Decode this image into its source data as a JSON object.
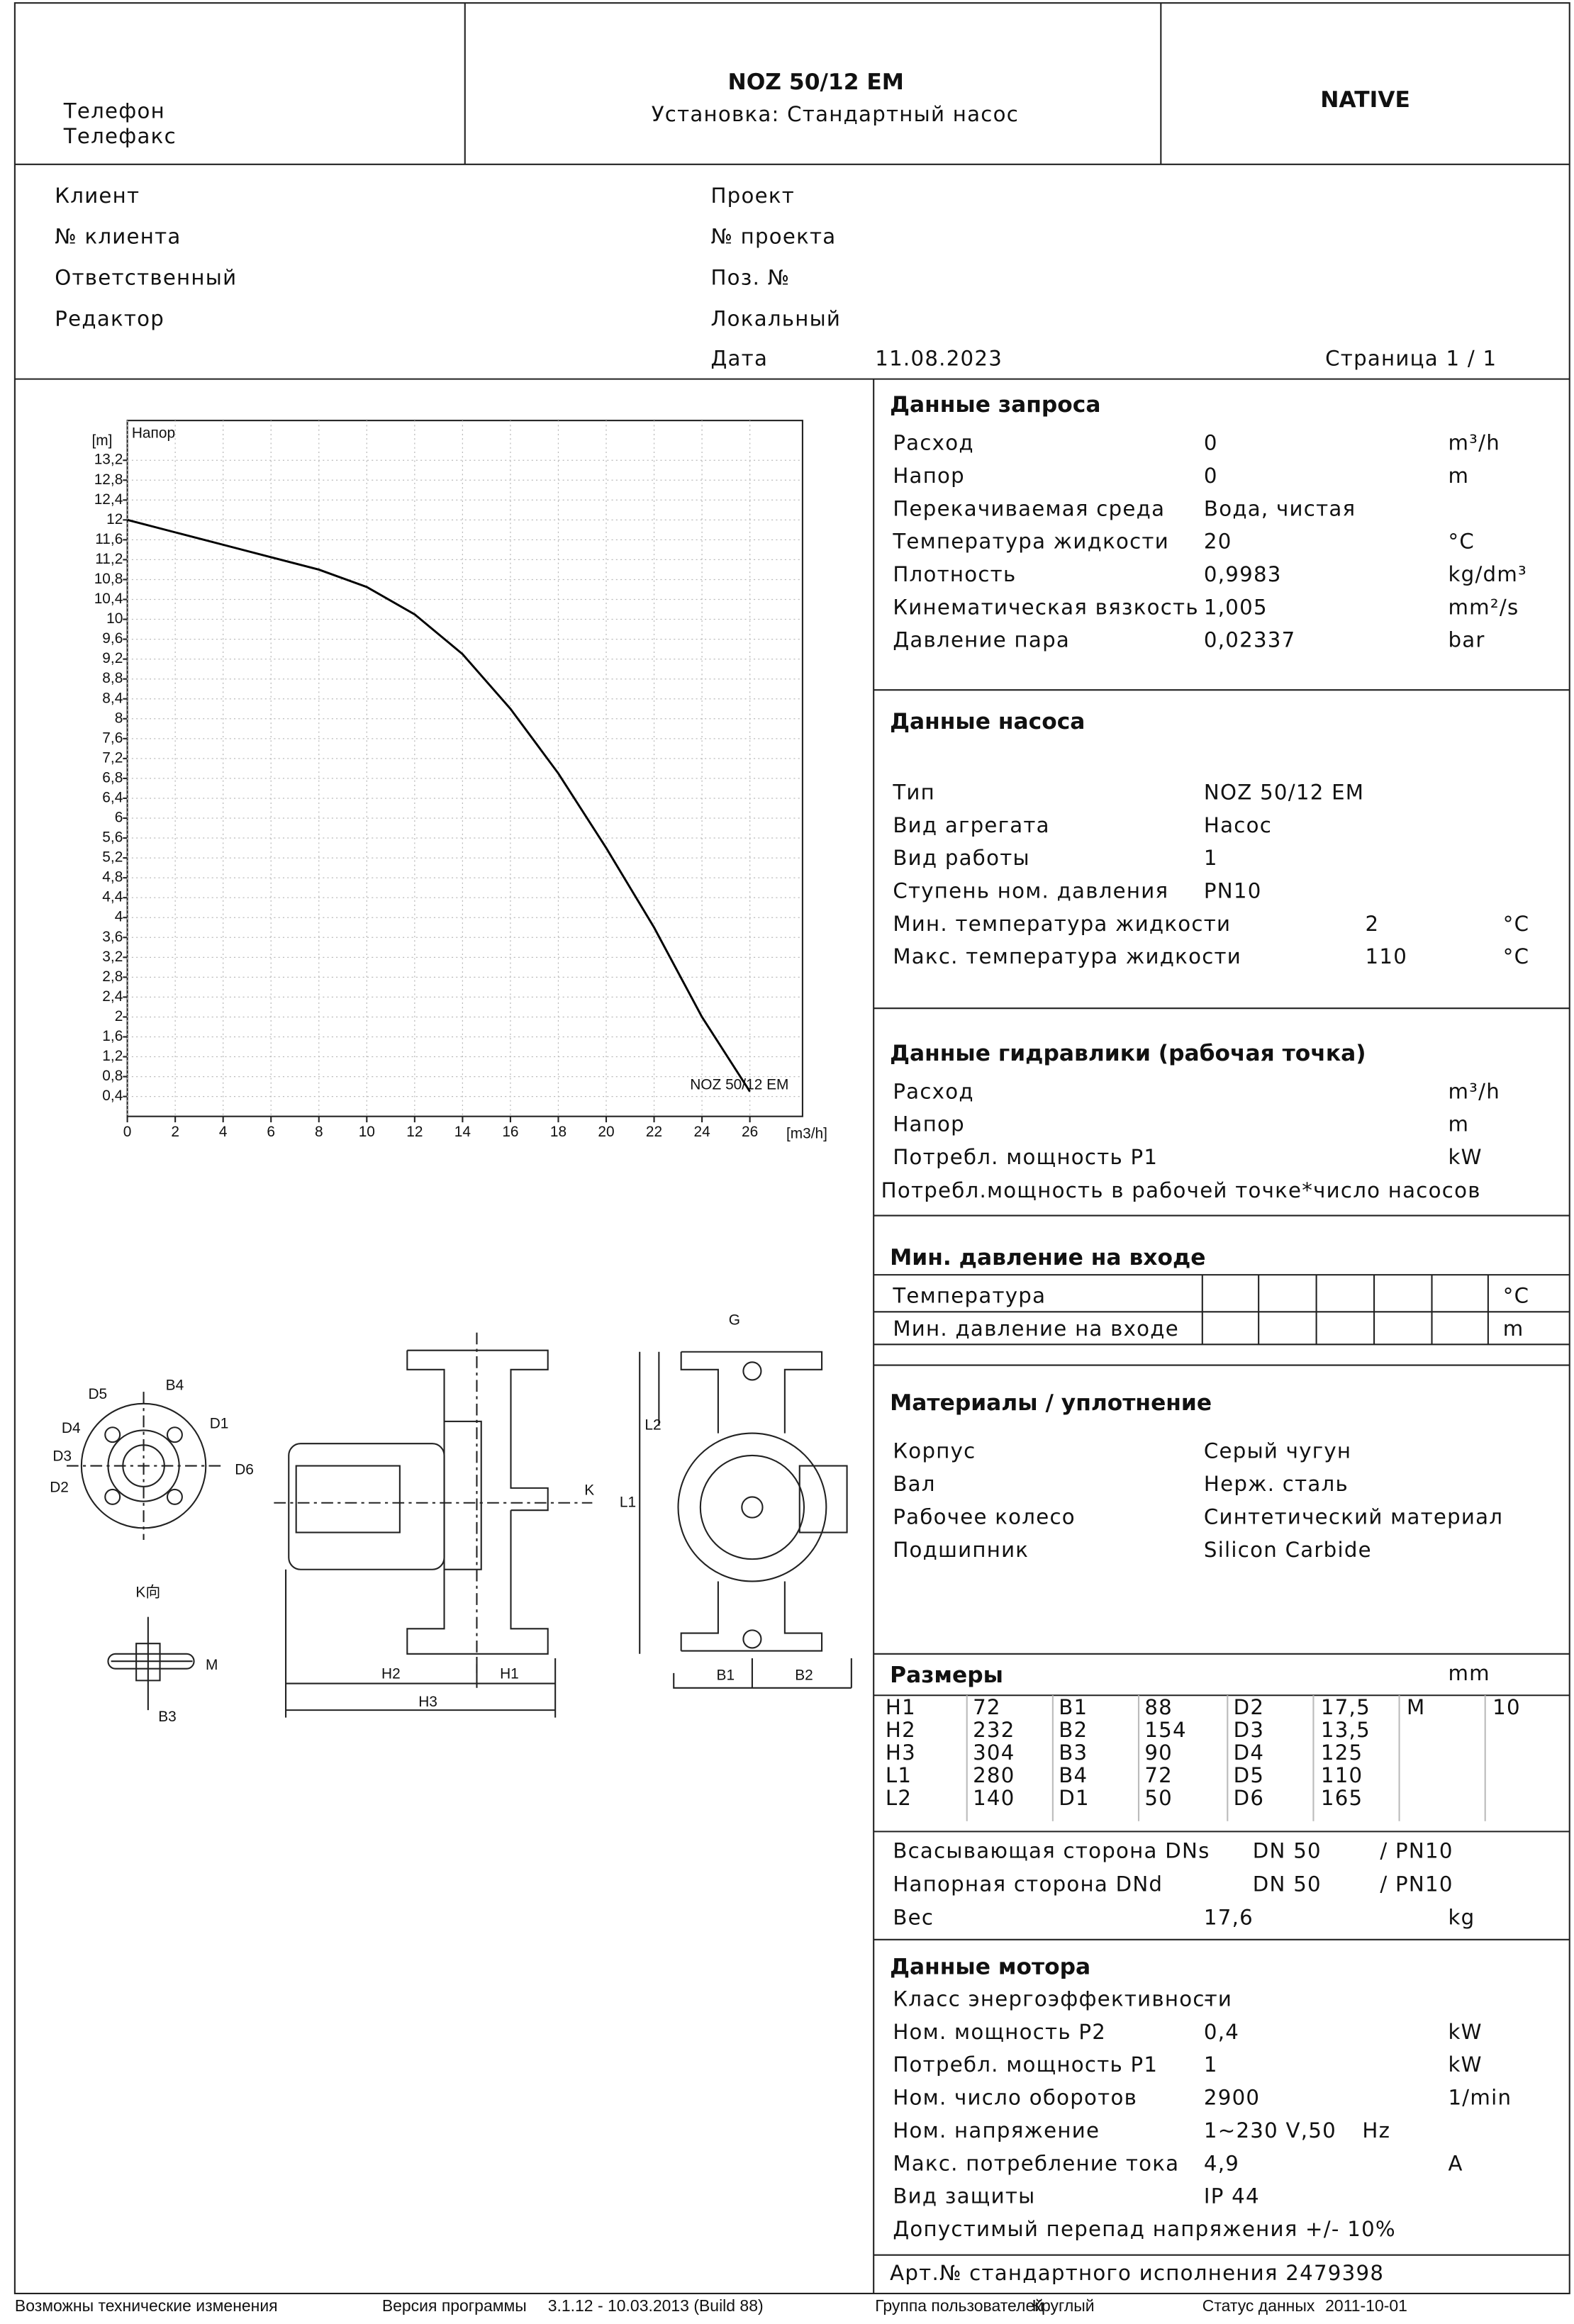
{
  "header": {
    "phone": "Телефон",
    "fax": "Телефакс",
    "title": "NOZ 50/12 EM",
    "subtitle": "Установка: Стандартный насос",
    "logo": "NATIVE"
  },
  "project": {
    "left": [
      "Клиент",
      "№ клиента",
      "Ответственный",
      "Редактор"
    ],
    "right": [
      "Проект",
      "№ проекта",
      "Поз. №",
      "Локальный"
    ],
    "date_label": "Дата",
    "date": "11.08.2023",
    "page": "Страница 1 / 1"
  },
  "chart_data": {
    "type": "line",
    "y_label": "[m]",
    "x_label": "[m3/h]",
    "inner_label": "Напор",
    "curve_label": "NOZ 50/12 EM",
    "x": [
      0,
      2,
      4,
      6,
      8,
      10,
      12,
      14,
      16,
      18,
      20,
      22,
      24,
      26
    ],
    "values": [
      12.0,
      11.75,
      11.5,
      11.25,
      11.0,
      10.65,
      10.1,
      9.3,
      8.2,
      6.9,
      5.4,
      3.8,
      2.0,
      0.5
    ],
    "color": "#000000",
    "xlim": [
      0,
      28.2
    ],
    "ylim": [
      0,
      14
    ],
    "xticks": [
      0,
      2,
      4,
      6,
      8,
      10,
      12,
      14,
      16,
      18,
      20,
      22,
      24,
      26
    ],
    "yticks": [
      {
        "value": 0.4,
        "label": "0,4"
      },
      {
        "value": 0.8,
        "label": "0,8"
      },
      {
        "value": 1.2,
        "label": "1,2"
      },
      {
        "value": 1.6,
        "label": "1,6"
      },
      2,
      {
        "value": 2.4,
        "label": "2,4"
      },
      {
        "value": 2.8,
        "label": "2,8"
      },
      {
        "value": 3.2,
        "label": "3,2"
      },
      {
        "value": 3.6,
        "label": "3,6"
      },
      4,
      {
        "value": 4.4,
        "label": "4,4"
      },
      {
        "value": 4.8,
        "label": "4,8"
      },
      {
        "value": 5.2,
        "label": "5,2"
      },
      {
        "value": 5.6,
        "label": "5,6"
      },
      6,
      {
        "value": 6.4,
        "label": "6,4"
      },
      {
        "value": 6.8,
        "label": "6,8"
      },
      {
        "value": 7.2,
        "label": "7,2"
      },
      {
        "value": 7.6,
        "label": "7,6"
      },
      8,
      {
        "value": 8.4,
        "label": "8,4"
      },
      {
        "value": 8.8,
        "label": "8,8"
      },
      {
        "value": 9.2,
        "label": "9,2"
      },
      {
        "value": 9.6,
        "label": "9,6"
      },
      10,
      {
        "value": 10.4,
        "label": "10,4"
      },
      {
        "value": 10.8,
        "label": "10,8"
      },
      {
        "value": 11.2,
        "label": "11,2"
      },
      {
        "value": 11.6,
        "label": "11,6"
      },
      12,
      {
        "value": 12.4,
        "label": "12,4"
      },
      {
        "value": 12.8,
        "label": "12,8"
      },
      {
        "value": 13.2,
        "label": "13,2"
      }
    ],
    "grid": true
  },
  "request_data": {
    "title": "Данные запроса",
    "rows": [
      [
        "Расход",
        "0",
        "m³/h"
      ],
      [
        "Напор",
        "0",
        "m"
      ],
      [
        "Перекачиваемая среда",
        "Вода, чистая"
      ],
      [
        "Температура жидкости",
        "20",
        "°C"
      ],
      [
        "Плотность",
        "0,9983",
        "kg/dm³"
      ],
      [
        "Кинематическая вязкость",
        "1,005",
        "mm²/s"
      ],
      [
        "Давление пара",
        "0,02337",
        "bar"
      ]
    ]
  },
  "pump_data": {
    "title": "Данные насоса",
    "rows": [
      [
        "Тип",
        "NOZ 50/12 EM"
      ],
      [
        "Вид агрегата",
        "Насос"
      ],
      [
        "Вид работы",
        "1"
      ],
      [
        "Ступень ном. давления",
        "PN10"
      ],
      [
        "Мин. температура жидкости",
        "2",
        "°C"
      ],
      [
        "Макс. температура жидкости",
        "110",
        "°C"
      ]
    ]
  },
  "hydraulics": {
    "title": "Данные гидравлики (рабочая точка)",
    "rows": [
      [
        "Расход",
        "m³/h"
      ],
      [
        "Напор",
        "m"
      ],
      [
        "Потребл. мощность P1",
        "kW"
      ]
    ],
    "note": "Потребл.мощность в рабочей точке*число насосов"
  },
  "min_inlet": {
    "title": "Мин. давление на входе",
    "rows": [
      [
        "Температура",
        "°C"
      ],
      [
        "Мин. давление на входе",
        "m"
      ]
    ]
  },
  "materials": {
    "title": "Материалы / уплотнение",
    "rows": [
      [
        "Корпус",
        "Серый чугун"
      ],
      [
        "Вал",
        "Нерж. сталь"
      ],
      [
        "Рабочее колесо",
        "Синтетический материал"
      ],
      [
        "Подшипник",
        "Silicon Carbide"
      ]
    ]
  },
  "dimensions": {
    "title": "Размеры",
    "unit": "mm",
    "table": [
      [
        "H1",
        "72",
        "B1",
        "88",
        "D2",
        "17,5",
        "M",
        "10"
      ],
      [
        "H2",
        "232",
        "B2",
        "154",
        "D3",
        "13,5"
      ],
      [
        "H3",
        "304",
        "B3",
        "90",
        "D4",
        "125"
      ],
      [
        "L1",
        "280",
        "B4",
        "72",
        "D5",
        "110"
      ],
      [
        "L2",
        "140",
        "D1",
        "50",
        "D6",
        "165"
      ]
    ],
    "connections": [
      [
        "Всасывающая сторона DNs",
        "DN 50",
        "/ PN10"
      ],
      [
        "Напорная сторона DNd",
        "DN 50",
        "/ PN10"
      ]
    ],
    "weight": [
      "Вес",
      "17,6",
      "kg"
    ]
  },
  "motor": {
    "title": "Данные мотора",
    "rows": [
      [
        "Класс энергоэффективности",
        "-"
      ],
      [
        "Ном. мощность P2",
        "0,4",
        "kW"
      ],
      [
        "Потребл. мощность P1",
        "1",
        "kW"
      ],
      [
        "Ном. число оборотов",
        "2900",
        "1/min"
      ],
      [
        "Ном. напряжение",
        "1~230 V,50",
        "Hz"
      ],
      [
        "Макс. потребление тока",
        "4,9",
        "A"
      ],
      [
        "Вид защиты",
        "IP 44"
      ],
      [
        "Допустимый перепад напряжения +/- 10%"
      ]
    ]
  },
  "article": "Арт.№ стандартного исполнения 2479398",
  "drawing_labels": [
    "G",
    "B4",
    "D1",
    "D6",
    "D5",
    "D4",
    "D3",
    "D2",
    "K向",
    "M",
    "B3",
    "H2",
    "H1",
    "H3",
    "K",
    "L1",
    "L2",
    "B1",
    "B2"
  ],
  "footer": {
    "note": "Возможны технические изменения",
    "version_label": "Версия программы",
    "version": "3.1.12  -  10.03.2013 (Build 88)",
    "group_label": "Группа пользователей",
    "group": "Круглый",
    "status_label": "Статус данных",
    "status": "2011-10-01"
  }
}
